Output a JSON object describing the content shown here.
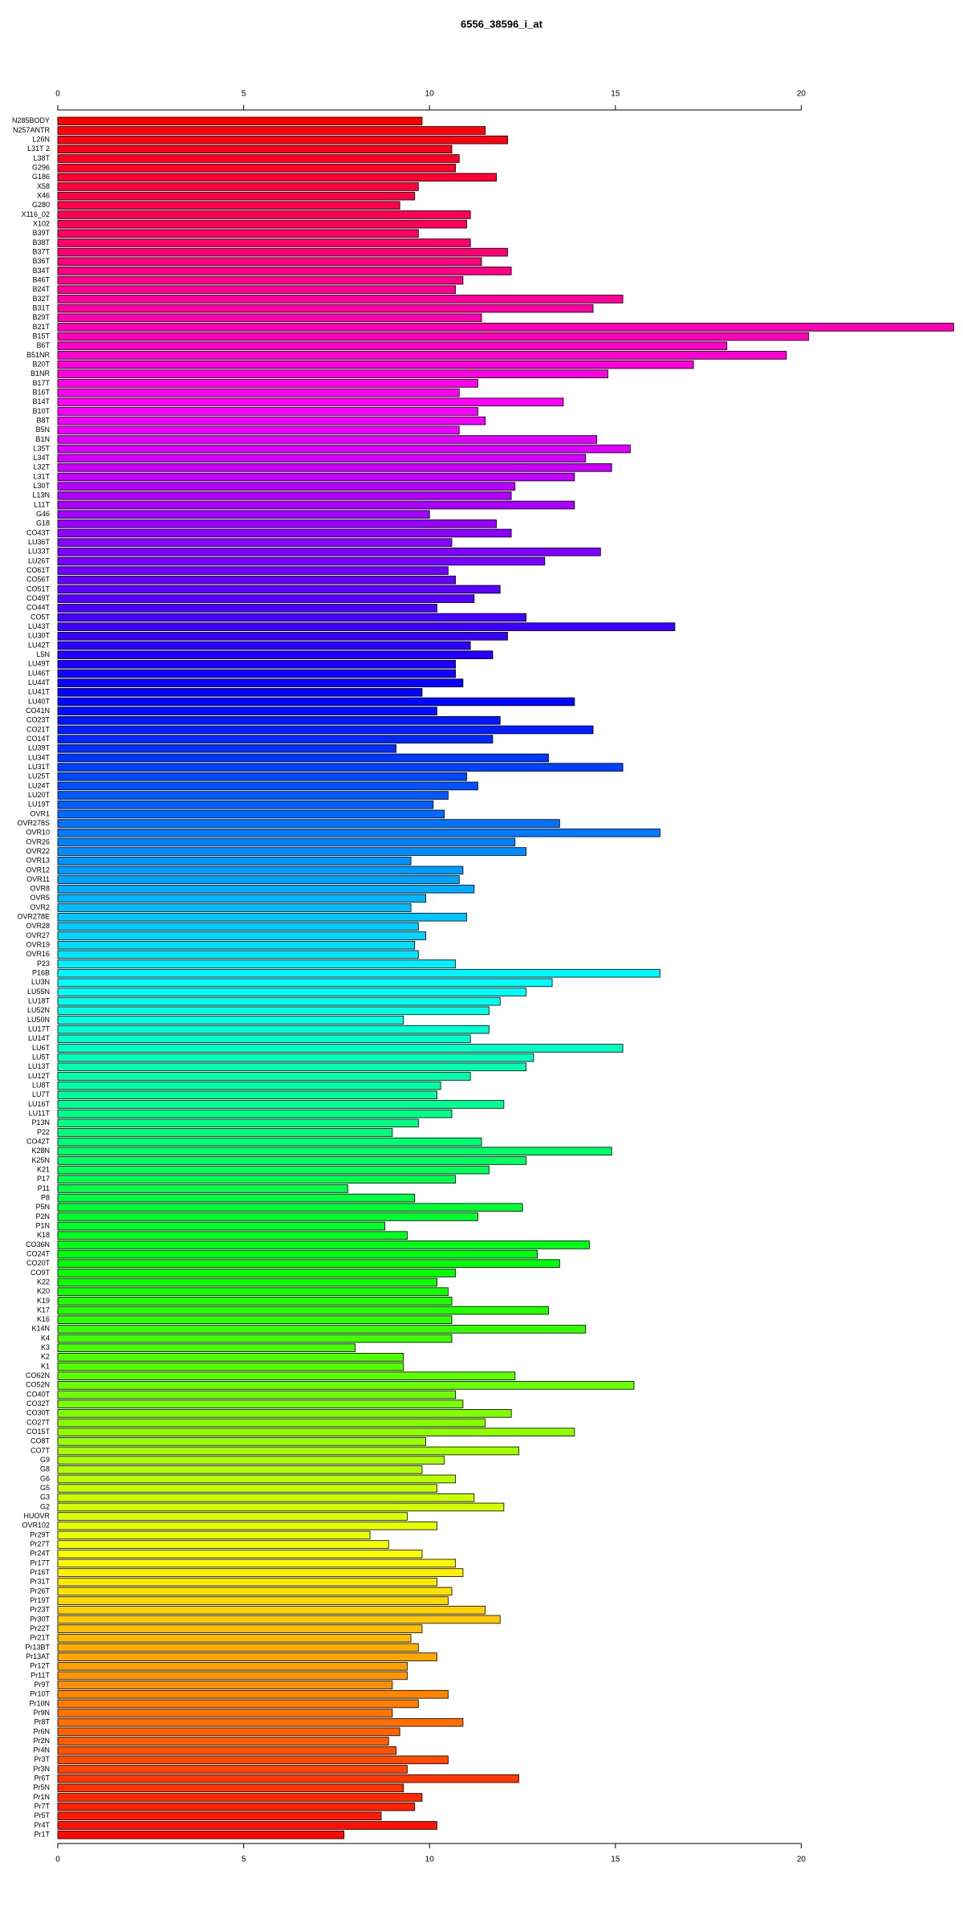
{
  "chart_data": {
    "type": "barh",
    "title": "6556_38596_i_at",
    "categories": [
      "N285BODY",
      "N257ANTR",
      "L26N",
      "L31T 2",
      "L38T",
      "G296",
      "G186",
      "X58",
      "X46",
      "G280",
      "X116_02",
      "X102",
      "B39T",
      "B38T",
      "B37T",
      "B36T",
      "B34T",
      "B46T",
      "B24T",
      "B32T",
      "B31T",
      "B29T",
      "B21T",
      "B15T",
      "B6T",
      "B51NR",
      "B20T",
      "B1NR",
      "B17T",
      "B16T",
      "B14T",
      "B10T",
      "B8T",
      "B5N",
      "B1N",
      "L35T",
      "L34T",
      "L32T",
      "L31T",
      "L30T",
      "L13N",
      "L11T",
      "G46",
      "G18",
      "CO43T",
      "LU36T",
      "LU33T",
      "LU26T",
      "CO61T",
      "CO56T",
      "CO51T",
      "CO49T",
      "CO44T",
      "CO5T",
      "LU43T",
      "LU30T",
      "LU42T",
      "L5N",
      "LU49T",
      "LU46T",
      "LU44T",
      "LU41T",
      "LU40T",
      "CO41N",
      "CO23T",
      "CO21T",
      "CO14T",
      "LU39T",
      "LU34T",
      "LU31T",
      "LU25T",
      "LU24T",
      "LU20T",
      "LU19T",
      "OVR1",
      "OVR278S",
      "OVR10",
      "OVR26",
      "OVR22",
      "OVR13",
      "OVR12",
      "OVR11",
      "OVR8",
      "OVR5",
      "OVR2",
      "OVR278E",
      "OVR28",
      "OVR27",
      "OVR19",
      "OVR16",
      "P23",
      "P16B",
      "LU3N",
      "LU55N",
      "LU18T",
      "LU52N",
      "LU50N",
      "LU17T",
      "LU14T",
      "LU6T",
      "LU5T",
      "LU13T",
      "LU12T",
      "LU8T",
      "LU7T",
      "LU16T",
      "LU11T",
      "P13N",
      "P22",
      "CO42T",
      "K28N",
      "K25N",
      "K21",
      "P17",
      "P11",
      "P8",
      "P5N",
      "P2N",
      "P1N",
      "K18",
      "CO36N",
      "CO24T",
      "CO20T",
      "CO9T",
      "K22",
      "K20",
      "K19",
      "K17",
      "K16",
      "K14N",
      "K4",
      "K3",
      "K2",
      "K1",
      "CO62N",
      "CO52N",
      "CO40T",
      "CO32T",
      "CO30T",
      "CO27T",
      "CO15T",
      "CO8T",
      "CO7T",
      "G9",
      "G8",
      "G6",
      "G5",
      "G3",
      "G2",
      "HUOVR",
      "OVR102",
      "Pr29T",
      "Pr27T",
      "Pr24T",
      "Pr17T",
      "Pr16T",
      "Pr31T",
      "Pr26T",
      "Pr19T",
      "Pr23T",
      "Pr30T",
      "Pr22T",
      "Pr21T",
      "Pr13BT",
      "Pr13AT",
      "Pr12T",
      "Pr11T",
      "Pr9T",
      "Pr10T",
      "Pr10N",
      "Pr9N",
      "Pr8T",
      "Pr6N",
      "Pr2N",
      "Pr4N",
      "Pr3T",
      "Pr3N",
      "Pr6T",
      "Pr5N",
      "Pr1N",
      "Pr7T",
      "Pr5T",
      "Pr4T",
      "Pr1T"
    ],
    "values": [
      9.8,
      11.5,
      12.1,
      10.6,
      10.8,
      10.7,
      11.8,
      9.7,
      9.6,
      9.2,
      11.1,
      11.0,
      9.7,
      11.1,
      12.1,
      11.4,
      12.2,
      10.9,
      10.7,
      15.2,
      14.4,
      11.4,
      24.1,
      20.2,
      18.0,
      19.6,
      17.1,
      14.8,
      11.3,
      10.8,
      13.6,
      11.3,
      11.5,
      10.8,
      14.5,
      15.4,
      14.2,
      14.9,
      13.9,
      12.3,
      12.2,
      13.9,
      10.0,
      11.8,
      12.2,
      10.6,
      14.6,
      13.1,
      10.5,
      10.7,
      11.9,
      11.2,
      10.2,
      12.6,
      16.6,
      12.1,
      11.1,
      11.7,
      10.7,
      10.7,
      10.9,
      9.8,
      13.9,
      10.2,
      11.9,
      14.4,
      11.7,
      9.1,
      13.2,
      15.2,
      11.0,
      11.3,
      10.5,
      10.1,
      10.4,
      13.5,
      16.2,
      12.3,
      12.6,
      9.5,
      10.9,
      10.8,
      11.2,
      9.9,
      9.5,
      11.0,
      9.7,
      9.9,
      9.6,
      9.7,
      10.7,
      16.2,
      13.3,
      12.6,
      11.9,
      11.6,
      9.3,
      11.6,
      11.1,
      15.2,
      12.8,
      12.6,
      11.1,
      10.3,
      10.2,
      12.0,
      10.6,
      9.7,
      9.0,
      11.4,
      14.9,
      12.6,
      11.6,
      10.7,
      7.8,
      9.6,
      12.5,
      11.3,
      8.8,
      9.4,
      14.3,
      12.9,
      13.5,
      10.7,
      10.2,
      10.5,
      10.6,
      13.2,
      10.6,
      14.2,
      10.6,
      8.0,
      9.3,
      9.3,
      12.3,
      15.5,
      10.7,
      10.9,
      12.2,
      11.5,
      13.9,
      9.9,
      12.4,
      10.4,
      9.8,
      10.7,
      10.2,
      11.2,
      12.0,
      9.4,
      10.2,
      8.4,
      8.9,
      9.8,
      10.7,
      10.9,
      10.2,
      10.6,
      10.5,
      11.5,
      11.9,
      9.8,
      9.5,
      9.7,
      10.2,
      9.4,
      9.4,
      9.0,
      10.5,
      9.7,
      9.0,
      10.9,
      9.2,
      8.9,
      9.1,
      10.5,
      9.4,
      12.4,
      9.3,
      9.8,
      9.6,
      8.7,
      10.2,
      7.7
    ],
    "xlim": [
      0,
      24.2
    ],
    "xticks": [
      0,
      5,
      10,
      15,
      20
    ],
    "color_hue_range": [
      360,
      0
    ],
    "bar_outline": "#000000"
  }
}
